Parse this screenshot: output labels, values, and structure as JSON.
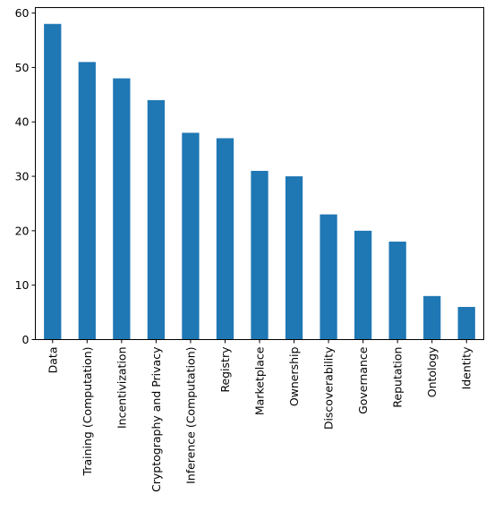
{
  "colors": {
    "bar": "#1f77b4",
    "axis": "#000000",
    "background": "#ffffff"
  },
  "chart_data": {
    "type": "bar",
    "orientation": "vertical",
    "categories": [
      "Data",
      "Training (Computation)",
      "Incentivization",
      "Cryptography and Privacy",
      "Inference (Computation)",
      "Registry",
      "Marketplace",
      "Ownership",
      "Discoverability",
      "Governance",
      "Reputation",
      "Ontology",
      "Identity"
    ],
    "values": [
      58,
      51,
      48,
      44,
      38,
      37,
      31,
      30,
      23,
      20,
      18,
      8,
      6
    ],
    "ylim": [
      0,
      61
    ],
    "yticks": [
      0,
      10,
      20,
      30,
      40,
      50,
      60
    ],
    "grid": false,
    "legend": "none",
    "xtick_rotation": 90
  }
}
